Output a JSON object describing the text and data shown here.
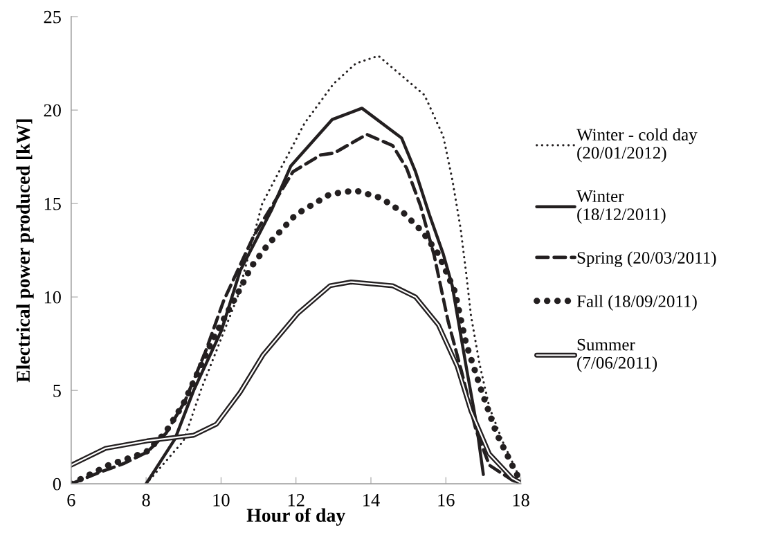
{
  "chart_data": {
    "type": "line",
    "xlabel": "Hour of day",
    "ylabel": "Electrical power produced [kW]",
    "xlim": [
      6,
      18
    ],
    "xticks": [
      6,
      8,
      10,
      12,
      14,
      16,
      18
    ],
    "ylim": [
      0,
      25
    ],
    "yticks": [
      0,
      5,
      10,
      15,
      20,
      25
    ],
    "grid": false,
    "legend": "right",
    "marker": "none",
    "series": [
      {
        "name": "Winter - cold day\n(20/01/2012)",
        "color": "#231f20",
        "line_style": "dotted",
        "x": [
          8,
          9,
          9.46,
          10.44,
          11.1,
          12.23,
          13.0,
          13.6,
          14.2,
          15.43,
          15.93,
          16.17,
          16.39,
          16.54,
          16.67,
          16.9,
          17.16,
          17.53,
          18
        ],
        "values": [
          0,
          2.3,
          5.0,
          10.0,
          15.0,
          19.3,
          21.4,
          22.5,
          22.9,
          20.8,
          18.6,
          16.3,
          13.7,
          11.3,
          9.0,
          6.4,
          4.1,
          2.2,
          0.2
        ]
      },
      {
        "name": "Winter\n(18/12/2011)",
        "color": "#231f20",
        "line_style": "solid",
        "x": [
          8,
          8.77,
          9.27,
          10.01,
          10.51,
          11.36,
          11.86,
          12.97,
          13.76,
          14.82,
          15.19,
          15.56,
          15.93,
          16.17,
          16.54,
          16.8,
          17.0
        ],
        "values": [
          0,
          2.4,
          5.0,
          8.2,
          11.4,
          14.7,
          17.0,
          19.5,
          20.1,
          18.5,
          16.7,
          14.4,
          12.3,
          10.6,
          6.3,
          3.4,
          0.5
        ]
      },
      {
        "name": "Spring (20/03/2011)",
        "color": "#231f20",
        "line_style": "dashed",
        "x": [
          6,
          6.74,
          7.42,
          8.03,
          8.53,
          9.03,
          9.59,
          10.07,
          10.88,
          11.92,
          12.66,
          13.02,
          13.89,
          14.58,
          14.95,
          15.32,
          15.69,
          16.06,
          16.42,
          16.8,
          17.16,
          17.77,
          18
        ],
        "values": [
          0,
          0.6,
          1.1,
          1.7,
          2.7,
          4.4,
          7.1,
          9.8,
          13.3,
          16.7,
          17.6,
          17.7,
          18.7,
          18.1,
          16.9,
          14.9,
          12.2,
          8.7,
          6.0,
          2.9,
          1.0,
          0.2,
          0
        ]
      },
      {
        "name": "Fall (18/09/2011)",
        "color": "#231f20",
        "line_style": "dotted",
        "x": [
          6,
          7,
          8,
          8.5,
          9,
          9.8,
          10.5,
          10.8,
          11.25,
          11.99,
          12.91,
          13.58,
          14.26,
          14.87,
          15.37,
          15.8,
          16.24,
          16.54,
          16.98,
          17.35,
          17.77,
          18
        ],
        "values": [
          0,
          1.0,
          1.7,
          2.7,
          4.3,
          7.8,
          10.4,
          11.6,
          12.8,
          14.4,
          15.5,
          15.7,
          15.3,
          14.5,
          13.5,
          12.3,
          10.3,
          7.5,
          4.8,
          2.7,
          1.0,
          0.1
        ]
      },
      {
        "name": "Summer\n(7/06/2011)",
        "color": "#231f20",
        "line_style": "solid",
        "x": [
          6,
          6.92,
          8.03,
          9.27,
          9.88,
          10.51,
          11.12,
          12.04,
          12.91,
          13.47,
          14.58,
          15.19,
          15.8,
          16.3,
          16.67,
          17.16,
          17.77,
          18
        ],
        "values": [
          1.0,
          1.9,
          2.3,
          2.6,
          3.2,
          4.9,
          6.9,
          9.1,
          10.6,
          10.8,
          10.6,
          10.0,
          8.5,
          6.3,
          3.9,
          1.6,
          0.3,
          0.05
        ]
      }
    ]
  }
}
